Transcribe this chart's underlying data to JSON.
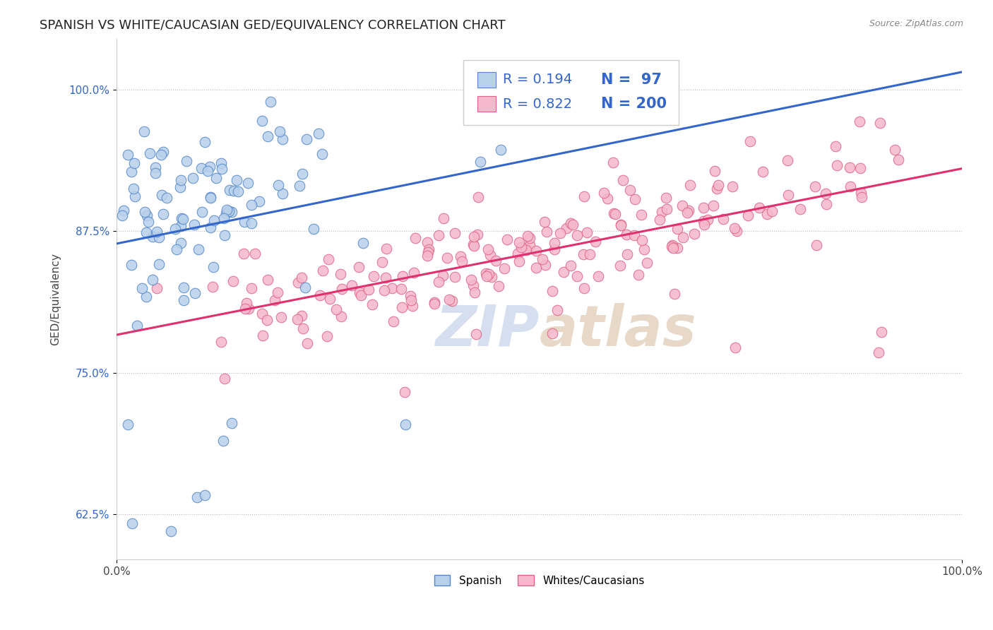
{
  "title": "SPANISH VS WHITE/CAUCASIAN GED/EQUIVALENCY CORRELATION CHART",
  "source": "Source: ZipAtlas.com",
  "ylabel": "GED/Equivalency",
  "xlim": [
    0.0,
    1.0
  ],
  "ylim": [
    0.585,
    1.045
  ],
  "yticks": [
    0.625,
    0.75,
    0.875,
    1.0
  ],
  "ytick_labels": [
    "62.5%",
    "75.0%",
    "87.5%",
    "100.0%"
  ],
  "xtick_labels": [
    "0.0%",
    "100.0%"
  ],
  "xticks": [
    0.0,
    1.0
  ],
  "spanish_R": 0.194,
  "spanish_N": 97,
  "white_R": 0.822,
  "white_N": 200,
  "spanish_color": "#b8d0ea",
  "spanish_edge": "#5588cc",
  "white_color": "#f5b8cc",
  "white_edge": "#e06688",
  "spanish_line_color": "#3366cc",
  "white_line_color": "#e03070",
  "background_color": "#ffffff",
  "watermark_color": "#d5dff0",
  "title_fontsize": 13,
  "label_fontsize": 11,
  "tick_fontsize": 11,
  "legend_fontsize": 14,
  "seed": 42
}
